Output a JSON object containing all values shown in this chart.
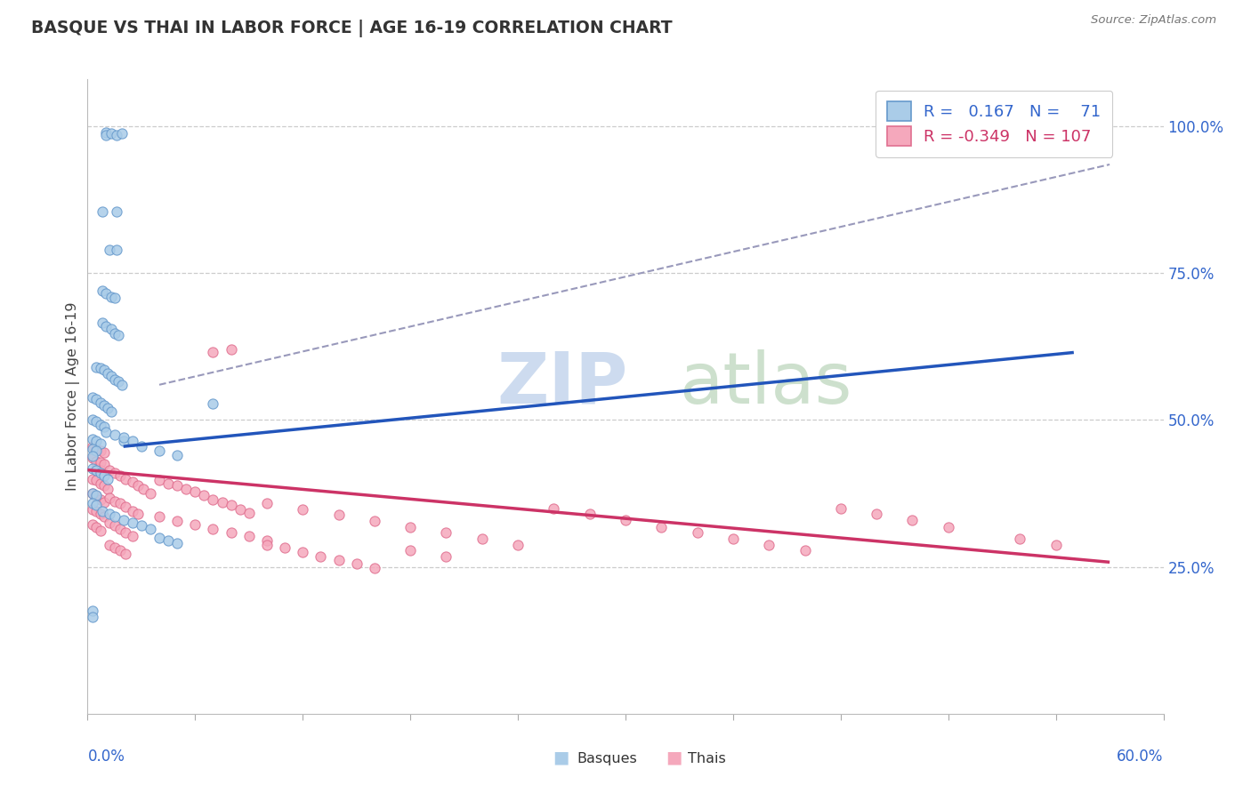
{
  "title": "BASQUE VS THAI IN LABOR FORCE | AGE 16-19 CORRELATION CHART",
  "source": "Source: ZipAtlas.com",
  "ylabel": "In Labor Force | Age 16-19",
  "x_min": 0.0,
  "x_max": 0.6,
  "y_min": 0.0,
  "y_max": 1.08,
  "right_y_ticks": [
    0.25,
    0.5,
    0.75,
    1.0
  ],
  "right_y_tick_labels": [
    "25.0%",
    "50.0%",
    "75.0%",
    "100.0%"
  ],
  "basque_color": "#aacce8",
  "thai_color": "#f5a8bc",
  "basque_edge_color": "#6699cc",
  "thai_edge_color": "#e07090",
  "basque_line_color": "#2255bb",
  "thai_line_color": "#cc3366",
  "dashed_line_color": "#9999bb",
  "accent_color": "#3366cc",
  "basque_R": "0.167",
  "basque_N": "71",
  "thai_R": "-0.349",
  "thai_N": "107",
  "basque_trend": [
    0.02,
    0.455,
    0.55,
    0.615
  ],
  "thai_trend": [
    0.0,
    0.415,
    0.57,
    0.258
  ],
  "dashed_trend": [
    0.04,
    0.56,
    0.57,
    0.935
  ],
  "basque_scatter_x": [
    0.01,
    0.01,
    0.013,
    0.016,
    0.019,
    0.008,
    0.016,
    0.012,
    0.016,
    0.008,
    0.01,
    0.013,
    0.015,
    0.008,
    0.01,
    0.013,
    0.015,
    0.017,
    0.005,
    0.007,
    0.009,
    0.011,
    0.013,
    0.015,
    0.017,
    0.019,
    0.003,
    0.005,
    0.007,
    0.009,
    0.011,
    0.013,
    0.003,
    0.005,
    0.007,
    0.009,
    0.003,
    0.005,
    0.007,
    0.003,
    0.005,
    0.003,
    0.003,
    0.005,
    0.007,
    0.009,
    0.011,
    0.003,
    0.005,
    0.003,
    0.005,
    0.02,
    0.03,
    0.04,
    0.05,
    0.01,
    0.015,
    0.02,
    0.025,
    0.07,
    0.008,
    0.012,
    0.015,
    0.02,
    0.025,
    0.03,
    0.035,
    0.04,
    0.045,
    0.05,
    0.003,
    0.003
  ],
  "basque_scatter_y": [
    0.99,
    0.985,
    0.988,
    0.985,
    0.988,
    0.855,
    0.855,
    0.79,
    0.79,
    0.72,
    0.715,
    0.71,
    0.708,
    0.665,
    0.66,
    0.655,
    0.648,
    0.645,
    0.59,
    0.588,
    0.585,
    0.58,
    0.575,
    0.568,
    0.565,
    0.56,
    0.538,
    0.535,
    0.53,
    0.525,
    0.52,
    0.515,
    0.5,
    0.498,
    0.492,
    0.488,
    0.468,
    0.465,
    0.46,
    0.45,
    0.448,
    0.438,
    0.418,
    0.415,
    0.41,
    0.405,
    0.4,
    0.375,
    0.372,
    0.358,
    0.355,
    0.465,
    0.455,
    0.448,
    0.44,
    0.48,
    0.475,
    0.47,
    0.465,
    0.528,
    0.345,
    0.34,
    0.335,
    0.33,
    0.325,
    0.32,
    0.315,
    0.3,
    0.295,
    0.29,
    0.175,
    0.165
  ],
  "thai_scatter_x": [
    0.003,
    0.003,
    0.005,
    0.005,
    0.005,
    0.007,
    0.007,
    0.007,
    0.009,
    0.009,
    0.003,
    0.005,
    0.007,
    0.009,
    0.011,
    0.003,
    0.005,
    0.007,
    0.009,
    0.003,
    0.005,
    0.007,
    0.009,
    0.003,
    0.005,
    0.007,
    0.012,
    0.015,
    0.018,
    0.021,
    0.025,
    0.028,
    0.031,
    0.035,
    0.012,
    0.015,
    0.018,
    0.021,
    0.025,
    0.028,
    0.012,
    0.015,
    0.018,
    0.021,
    0.025,
    0.012,
    0.015,
    0.018,
    0.021,
    0.04,
    0.045,
    0.05,
    0.055,
    0.06,
    0.065,
    0.07,
    0.075,
    0.08,
    0.085,
    0.09,
    0.04,
    0.05,
    0.06,
    0.07,
    0.08,
    0.09,
    0.1,
    0.1,
    0.11,
    0.12,
    0.13,
    0.14,
    0.15,
    0.16,
    0.1,
    0.12,
    0.14,
    0.16,
    0.18,
    0.2,
    0.22,
    0.24,
    0.18,
    0.2,
    0.26,
    0.28,
    0.3,
    0.32,
    0.34,
    0.36,
    0.38,
    0.4,
    0.42,
    0.44,
    0.46,
    0.48,
    0.52,
    0.54,
    0.07,
    0.08
  ],
  "thai_scatter_y": [
    0.455,
    0.435,
    0.45,
    0.43,
    0.418,
    0.448,
    0.428,
    0.415,
    0.445,
    0.425,
    0.4,
    0.398,
    0.392,
    0.388,
    0.382,
    0.375,
    0.37,
    0.365,
    0.36,
    0.348,
    0.345,
    0.34,
    0.335,
    0.322,
    0.318,
    0.312,
    0.415,
    0.41,
    0.405,
    0.4,
    0.395,
    0.388,
    0.382,
    0.375,
    0.368,
    0.362,
    0.358,
    0.352,
    0.345,
    0.34,
    0.325,
    0.32,
    0.315,
    0.308,
    0.302,
    0.288,
    0.282,
    0.278,
    0.272,
    0.398,
    0.392,
    0.388,
    0.382,
    0.378,
    0.372,
    0.365,
    0.36,
    0.355,
    0.348,
    0.342,
    0.335,
    0.328,
    0.322,
    0.315,
    0.308,
    0.302,
    0.295,
    0.288,
    0.282,
    0.275,
    0.268,
    0.262,
    0.255,
    0.248,
    0.358,
    0.348,
    0.338,
    0.328,
    0.318,
    0.308,
    0.298,
    0.288,
    0.278,
    0.268,
    0.35,
    0.34,
    0.33,
    0.318,
    0.308,
    0.298,
    0.288,
    0.278,
    0.35,
    0.34,
    0.33,
    0.318,
    0.298,
    0.288,
    0.615,
    0.62
  ]
}
